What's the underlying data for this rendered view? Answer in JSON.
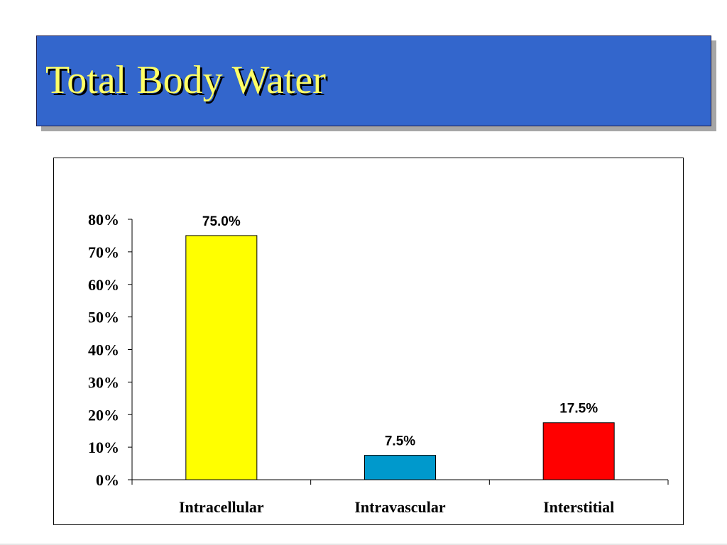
{
  "slide": {
    "title": "Total Body Water"
  },
  "colors": {
    "title_bg": "#3366cc",
    "title_text": "#ffff66",
    "axis": "#000000"
  },
  "chart_data": {
    "type": "bar",
    "title": "",
    "xlabel": "",
    "ylabel": "",
    "ylim": [
      0,
      80
    ],
    "yticks": [
      0,
      10,
      20,
      30,
      40,
      50,
      60,
      70,
      80
    ],
    "ytick_labels": [
      "0%",
      "10%",
      "20%",
      "30%",
      "40%",
      "50%",
      "60%",
      "70%",
      "80%"
    ],
    "categories": [
      "Intracellular",
      "Intravascular",
      "Interstitial"
    ],
    "values": [
      75.0,
      7.5,
      17.5
    ],
    "data_labels": [
      "75.0%",
      "7.5%",
      "17.5%"
    ],
    "bar_colors": [
      "#ffff00",
      "#0099cc",
      "#ff0000"
    ],
    "grid": false,
    "legend": "none"
  }
}
